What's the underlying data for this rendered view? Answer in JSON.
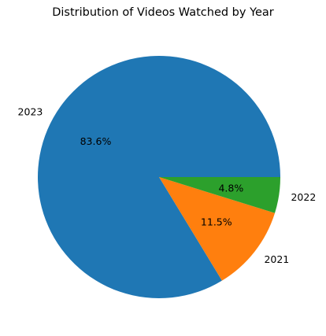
{
  "chart_data": {
    "type": "pie",
    "title": "Distribution of Videos Watched by Year",
    "start_angle_deg": 0,
    "direction": "counterclockwise",
    "slices": [
      {
        "label": "2023",
        "percent": 83.6,
        "percent_label": "83.6%",
        "color": "#1f77b4"
      },
      {
        "label": "2021",
        "percent": 11.5,
        "percent_label": "11.5%",
        "color": "#ff7f0e"
      },
      {
        "label": "2022",
        "percent": 4.8,
        "percent_label": "4.8%",
        "color": "#2ca02c"
      }
    ]
  }
}
